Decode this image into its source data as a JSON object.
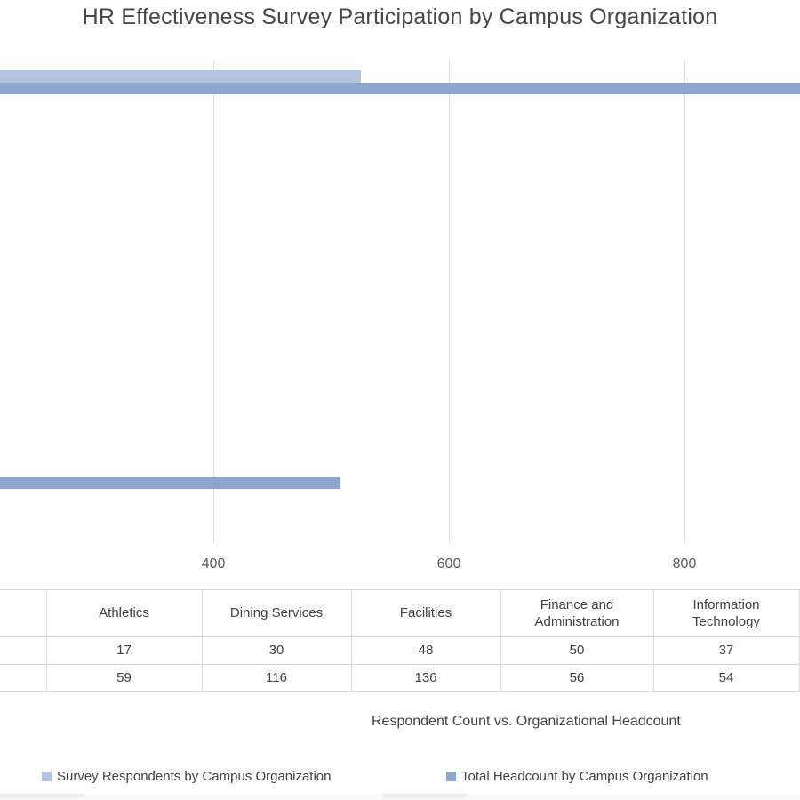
{
  "chart_data": {
    "type": "bar",
    "orientation": "horizontal",
    "title": "HR Effectiveness Survey Participation by Campus Organization",
    "axis_title": "Respondent Count vs. Organizational Headcount",
    "categories": [
      "Athletics",
      "Dining Services",
      "Facilities",
      "Finance and Administration",
      "Information Technology"
    ],
    "series": [
      {
        "name": "Survey Respondents by Campus Organization",
        "color": "#b4c3e0",
        "values": [
          17,
          30,
          48,
          50,
          37
        ]
      },
      {
        "name": "Total Headcount by Campus Organization",
        "color": "#8ea6cd",
        "values": [
          59,
          116,
          136,
          56,
          54
        ]
      }
    ],
    "x_ticks": [
      "400",
      "600",
      "800"
    ],
    "x_tick_values": [
      400,
      600,
      800
    ],
    "grid": true,
    "legend_position": "bottom",
    "visible_partial_bars": [
      {
        "series": 0,
        "approx_value": 525
      },
      {
        "series": 1,
        "approx_value": 1000,
        "clipped_right": true
      },
      {
        "series": 1,
        "approx_value": 508
      }
    ]
  }
}
